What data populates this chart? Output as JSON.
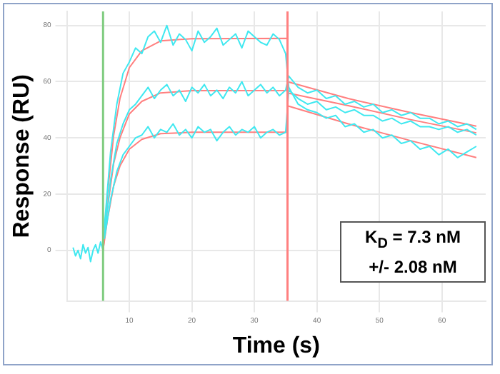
{
  "chart_data": {
    "type": "line",
    "xlabel": "Time (s)",
    "ylabel": "Response (RU)",
    "xlim": [
      0,
      67
    ],
    "xticks": [
      10,
      20,
      30,
      40,
      50,
      60
    ],
    "ylim": [
      -18,
      85
    ],
    "yticks": [
      0,
      20,
      40,
      60,
      80
    ],
    "grid": true,
    "marker": "none",
    "series": [
      {
        "color": "#40e8f0",
        "x": [
          1.0,
          1.4,
          1.8,
          2.2,
          2.6,
          3.0,
          3.4,
          3.8,
          4.2,
          4.6,
          5.0,
          5.4,
          5.8
        ],
        "values": [
          1,
          -2,
          0,
          -3,
          2,
          -1,
          1,
          -4,
          0,
          2,
          -1,
          3,
          0
        ]
      },
      {
        "color": "#40e8f0",
        "x": [
          6,
          7,
          8,
          9,
          10,
          11,
          12,
          13,
          14,
          15,
          16,
          17,
          18,
          19,
          20,
          21,
          22,
          23,
          24,
          25,
          26,
          27,
          28,
          29,
          30,
          31,
          32,
          33,
          34,
          35,
          35.5,
          37,
          38.5,
          40,
          41.5,
          43,
          44.5,
          46,
          47.5,
          49,
          50.5,
          52,
          53.5,
          55,
          56.5,
          58,
          59.5,
          61,
          62.5,
          64,
          65.5
        ],
        "values": [
          8,
          35,
          52,
          63,
          67,
          72,
          70,
          76,
          78,
          74,
          80,
          73,
          77,
          75,
          71,
          78,
          74,
          76,
          79,
          73,
          75,
          77,
          72,
          78,
          76,
          74,
          73,
          77,
          75,
          70,
          58,
          52,
          50,
          49,
          47,
          48,
          44,
          45,
          42,
          43,
          40,
          41,
          38,
          39,
          36,
          37,
          34,
          36,
          33,
          35,
          37
        ]
      },
      {
        "color": "#40e8f0",
        "x": [
          6,
          7,
          8,
          9,
          10,
          11,
          12,
          13,
          14,
          15,
          16,
          17,
          18,
          19,
          20,
          21,
          22,
          23,
          24,
          25,
          26,
          27,
          28,
          29,
          30,
          31,
          32,
          33,
          34,
          35,
          35.5,
          37,
          38.5,
          40,
          41.5,
          43,
          44.5,
          46,
          47.5,
          49,
          50.5,
          52,
          53.5,
          55,
          56.5,
          58,
          59.5,
          61,
          62.5,
          64,
          65.5
        ],
        "values": [
          5,
          25,
          38,
          45,
          50,
          52,
          55,
          58,
          54,
          57,
          59,
          55,
          57,
          53,
          58,
          56,
          59,
          55,
          57,
          54,
          58,
          56,
          60,
          55,
          57,
          59,
          56,
          58,
          55,
          57,
          62,
          58,
          56,
          57,
          54,
          55,
          52,
          53,
          51,
          52,
          49,
          50,
          48,
          49,
          47,
          47,
          45,
          46,
          44,
          45,
          43
        ]
      },
      {
        "color": "#40e8f0",
        "x": [
          6,
          7,
          8,
          9,
          10,
          11,
          12,
          13,
          14,
          15,
          16,
          17,
          18,
          19,
          20,
          21,
          22,
          23,
          24,
          25,
          26,
          27,
          28,
          29,
          30,
          31,
          32,
          33,
          34,
          35,
          35.5,
          37,
          38.5,
          40,
          41.5,
          43,
          44.5,
          46,
          47.5,
          49,
          50.5,
          52,
          53.5,
          55,
          56.5,
          58,
          59.5,
          61,
          62.5,
          64,
          65.5
        ],
        "values": [
          4,
          18,
          28,
          34,
          37,
          40,
          41,
          44,
          40,
          43,
          42,
          45,
          41,
          43,
          40,
          44,
          42,
          43,
          39,
          42,
          44,
          41,
          43,
          42,
          44,
          40,
          42,
          43,
          41,
          42,
          57,
          54,
          52,
          53,
          50,
          51,
          49,
          50,
          48,
          48,
          46,
          47,
          45,
          46,
          44,
          44,
          43,
          44,
          42,
          43,
          41
        ]
      },
      {
        "type": "line",
        "color": "#ff7f7f",
        "x": [
          5.8,
          6.5,
          7.5,
          8.5,
          10,
          12,
          15,
          20,
          35.3,
          35.3,
          45,
          55,
          65.5
        ],
        "values": [
          0,
          20,
          41,
          54,
          65,
          71,
          74.5,
          75.3,
          75.4,
          51.4,
          45,
          39,
          33
        ]
      },
      {
        "type": "line",
        "color": "#ff7f7f",
        "x": [
          5.8,
          6.5,
          7.5,
          8.5,
          10,
          12,
          15,
          20,
          35.3,
          35.3,
          45,
          55,
          65.5
        ],
        "values": [
          0,
          15,
          31,
          40,
          48.5,
          53,
          56,
          56.8,
          56.9,
          60,
          54,
          49,
          44.2
        ]
      },
      {
        "type": "line",
        "color": "#ff7f7f",
        "x": [
          5.8,
          6.5,
          7.5,
          8.5,
          10,
          12,
          15,
          20,
          35.3,
          35.3,
          45,
          55,
          65.5
        ],
        "values": [
          0,
          11,
          23,
          30,
          36,
          39.5,
          41.5,
          42,
          42,
          56,
          51.5,
          46.5,
          41.8
        ]
      }
    ],
    "ref_lines": [
      {
        "axis": "x",
        "value": 5.8,
        "color": "#80cc80"
      },
      {
        "axis": "x",
        "value": 35.3,
        "color": "#ff8080"
      }
    ],
    "annotations": [
      "K$_{D}$ = 7.3 nM",
      "+/- 2.08 nM"
    ]
  }
}
